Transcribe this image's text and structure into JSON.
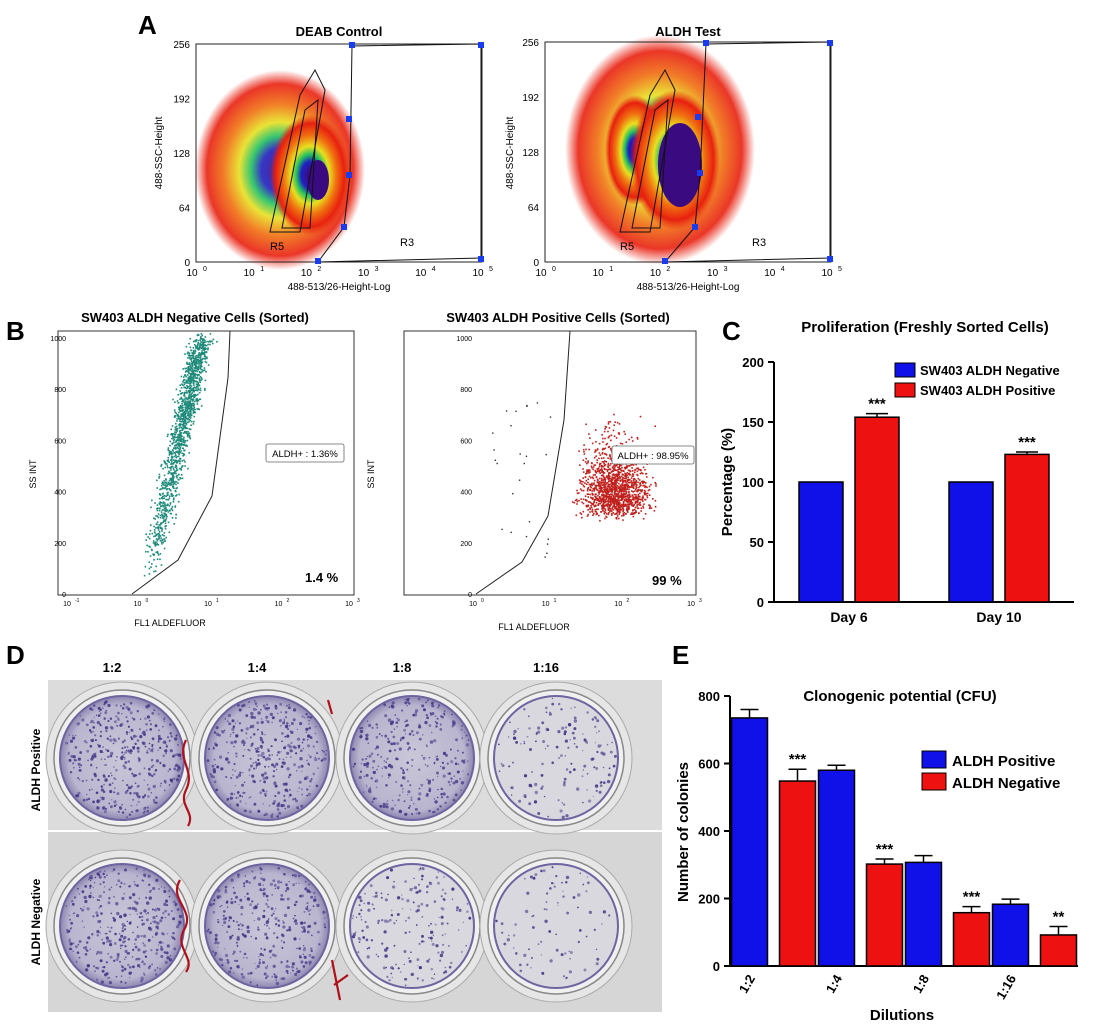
{
  "panel_letters": {
    "a": "A",
    "b": "B",
    "c": "C",
    "d": "D",
    "e": "E"
  },
  "panel_a": {
    "plots": [
      {
        "title": "DEAB Control",
        "y_label": "488-SSC-Height",
        "x_label": "488-513/26-Height-Log",
        "y_ticks": [
          "0",
          "64",
          "128",
          "192",
          "256"
        ],
        "x_ticks": [
          "10",
          "10",
          "10",
          "10",
          "10",
          "10"
        ],
        "x_exp": [
          "0",
          "1",
          "2",
          "3",
          "4",
          "5"
        ],
        "gate_left": "R5",
        "gate_right": "R3"
      },
      {
        "title": "ALDH Test",
        "y_label": "488-SSC-Height",
        "x_label": "488-513/26-Height-Log",
        "y_ticks": [
          "0",
          "64",
          "128",
          "192",
          "256"
        ],
        "x_ticks": [
          "10",
          "10",
          "10",
          "10",
          "10",
          "10"
        ],
        "x_exp": [
          "0",
          "1",
          "2",
          "3",
          "4",
          "5"
        ],
        "gate_left": "R5",
        "gate_right": "R3"
      }
    ]
  },
  "panel_b": {
    "plots": [
      {
        "title": "SW403 ALDH Negative Cells (Sorted)",
        "y_label": "SS INT",
        "x_label": "FL1 ALDEFLUOR",
        "y_ticks": [
          "0",
          "200",
          "400",
          "600",
          "800",
          "1000"
        ],
        "x_exp": [
          "-1",
          "0",
          "1",
          "2",
          "3"
        ],
        "gate_label": "ALDH+ : 1.36%",
        "percent": "1.4 %",
        "dot_color": "#1f8a7a"
      },
      {
        "title": "SW403 ALDH Positive Cells (Sorted)",
        "y_label": "SS INT",
        "x_label": "FL1 ALDEFLUOR",
        "y_ticks": [
          "0",
          "200",
          "400",
          "600",
          "800",
          "1000"
        ],
        "x_exp": [
          "0",
          "1",
          "2",
          "3"
        ],
        "gate_label": "ALDH+ : 98.95%",
        "percent": "99 %",
        "dot_color": "#c0201c"
      }
    ]
  },
  "panel_d": {
    "dilutions": [
      "1:2",
      "1:4",
      "1:8",
      "1:16"
    ],
    "rows": [
      "ALDH Positive",
      "ALDH Negative"
    ],
    "density": [
      [
        0.95,
        0.9,
        0.75,
        0.35
      ],
      [
        0.85,
        0.8,
        0.45,
        0.2
      ]
    ]
  },
  "colors": {
    "blue": "#1010e8",
    "red": "#ee1111"
  },
  "chart_data": [
    {
      "type": "bar",
      "title": "Proliferation (Freshly Sorted Cells)",
      "xlabel": "",
      "ylabel": "Percentage (%)",
      "ylim": [
        0,
        200
      ],
      "yticks": [
        0,
        50,
        100,
        150,
        200
      ],
      "categories": [
        "Day 6",
        "Day 10"
      ],
      "series": [
        {
          "name": "SW403 ALDH Negative",
          "values": [
            100,
            100
          ],
          "errors": [
            0,
            0
          ],
          "color": "#1010e8"
        },
        {
          "name": "SW403 ALDH Positive",
          "values": [
            154,
            123
          ],
          "errors": [
            3,
            2
          ],
          "color": "#ee1111"
        }
      ],
      "annotations": [
        "***",
        "***"
      ],
      "legend": "top-right"
    },
    {
      "type": "bar",
      "title": "Clonogenic potential (CFU)",
      "xlabel": "Dilutions",
      "ylabel": "Number of colonies",
      "ylim": [
        0,
        800
      ],
      "yticks": [
        0,
        200,
        400,
        600,
        800
      ],
      "categories": [
        "1:2",
        "1:4",
        "1:8",
        "1:16"
      ],
      "series": [
        {
          "name": "ALDH Positive",
          "values": [
            735,
            580,
            307,
            183
          ],
          "errors": [
            25,
            15,
            20,
            15
          ],
          "color": "#1010e8"
        },
        {
          "name": "ALDH Negative",
          "values": [
            548,
            302,
            158,
            92
          ],
          "errors": [
            35,
            15,
            18,
            25
          ],
          "color": "#ee1111"
        }
      ],
      "annotations": [
        "***",
        "***",
        "***",
        "**"
      ],
      "legend": "top-right"
    }
  ]
}
